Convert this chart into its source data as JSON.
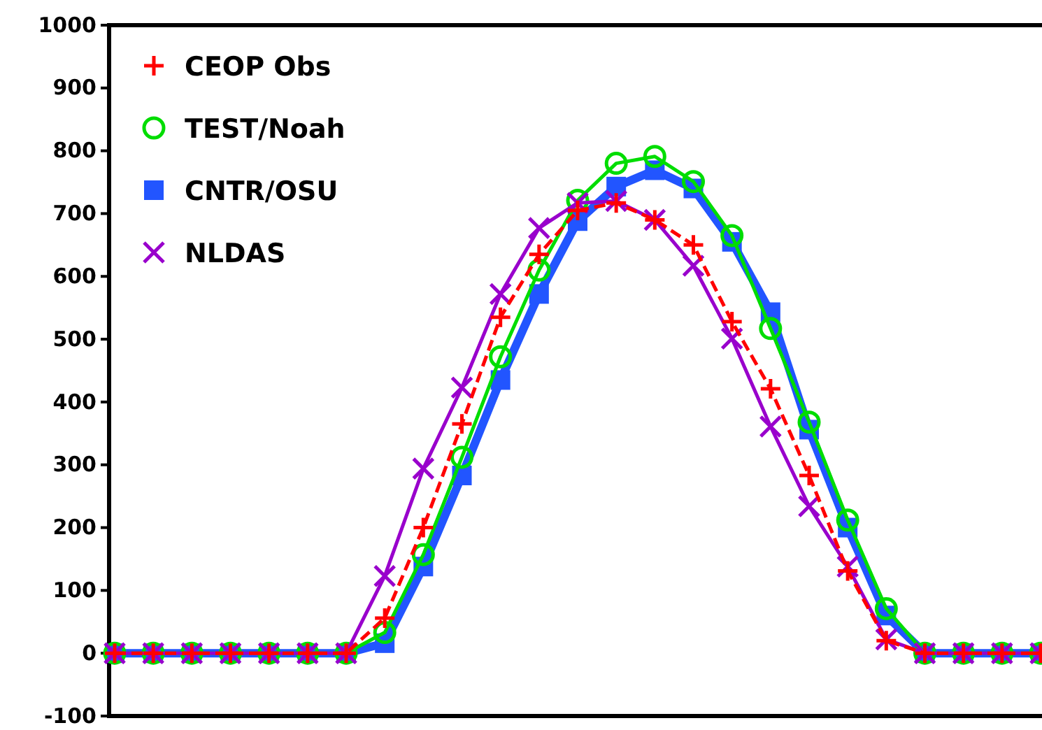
{
  "chart_data": {
    "type": "line",
    "categories": [
      null,
      null,
      null,
      null,
      null,
      null,
      null,
      null,
      null,
      null,
      null,
      null,
      null,
      null,
      null,
      null,
      null,
      null,
      null,
      null,
      null,
      null,
      null,
      null,
      null
    ],
    "series": [
      {
        "name": "CEOP Obs",
        "color": "#ff0000",
        "marker": "cross",
        "line_style": "dashed",
        "values": [
          0,
          0,
          0,
          0,
          0,
          0,
          0,
          56,
          200,
          365,
          535,
          635,
          705,
          717,
          690,
          650,
          528,
          421,
          283,
          131,
          20,
          0,
          0,
          0,
          0
        ]
      },
      {
        "name": "TEST/Noah",
        "color": "#00dd00",
        "marker": "circle",
        "values": [
          0,
          0,
          0,
          0,
          0,
          0,
          0,
          33,
          157,
          312,
          472,
          610,
          721,
          780,
          791,
          751,
          665,
          517,
          368,
          212,
          71,
          0,
          0,
          0,
          0
        ]
      },
      {
        "name": "CNTR/OSU",
        "color": "#2255ff",
        "marker": "square",
        "values": [
          0,
          0,
          0,
          0,
          0,
          0,
          0,
          16,
          138,
          283,
          435,
          572,
          688,
          743,
          769,
          740,
          655,
          543,
          356,
          200,
          60,
          0,
          0,
          0,
          0
        ]
      },
      {
        "name": "NLDAS",
        "color": "#9900cc",
        "marker": "x",
        "values": [
          0,
          0,
          0,
          0,
          0,
          0,
          0,
          123,
          294,
          423,
          572,
          677,
          717,
          720,
          690,
          617,
          501,
          361,
          234,
          138,
          22,
          0,
          0,
          0,
          0
        ]
      }
    ],
    "ylim": [
      -100,
      1000
    ],
    "yticks": [
      -100,
      0,
      100,
      200,
      300,
      400,
      500,
      600,
      700,
      800,
      900,
      1000
    ],
    "tick_labels": "y",
    "legend": "top left"
  }
}
